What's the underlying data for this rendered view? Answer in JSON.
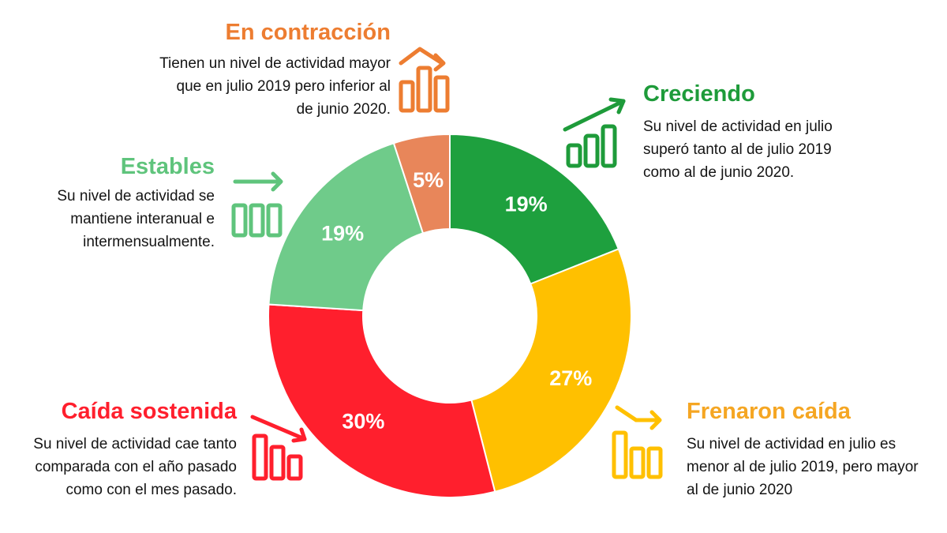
{
  "chart_data": {
    "type": "pie",
    "subtype": "donut",
    "title": "",
    "start_angle_deg": 0,
    "direction": "clockwise",
    "slices": [
      {
        "key": "creciendo",
        "label": "Creciendo",
        "value": 19,
        "display": "19%",
        "color": "#1ea03e"
      },
      {
        "key": "frenaron",
        "label": "Frenaron caída",
        "value": 27,
        "display": "27%",
        "color": "#ffc000"
      },
      {
        "key": "caida",
        "label": "Caída sostenida",
        "value": 30,
        "display": "30%",
        "color": "#ff1f2d"
      },
      {
        "key": "estables",
        "label": "Estables",
        "value": 19,
        "display": "19%",
        "color": "#6fcb8a"
      },
      {
        "key": "contraccion",
        "label": "En contracción",
        "value": 5,
        "display": "5%",
        "color": "#e8865a"
      }
    ]
  },
  "categories": {
    "contraccion": {
      "title": "En contracción",
      "color": "#ed7d31",
      "icon": "bars-arrow-up-then-down-icon",
      "lines": [
        "Tienen un nivel de actividad mayor",
        "que en julio 2019 pero inferior al",
        "de junio 2020."
      ]
    },
    "creciendo": {
      "title": "Creciendo",
      "color": "#1e9b3a",
      "icon": "bars-arrow-up-icon",
      "lines": [
        "Su nivel de actividad en julio",
        "superó tanto al de julio 2019",
        "como al de junio 2020."
      ]
    },
    "estables": {
      "title": "Estables",
      "color": "#5fc47c",
      "icon": "bars-arrow-right-icon",
      "lines": [
        "Su nivel de actividad se",
        "mantiene interanual e",
        "intermensualmente."
      ]
    },
    "caida": {
      "title": "Caída sostenida",
      "color": "#ff1f2d",
      "icon": "bars-arrow-down-icon",
      "lines": [
        "Su nivel de actividad cae tanto",
        "comparada con el año pasado",
        "como con el mes pasado."
      ]
    },
    "frenaron": {
      "title": "Frenaron caída",
      "color": "#f5a623",
      "icon": "bars-arrow-down-then-flat-icon",
      "lines": [
        "Su nivel de actividad en julio es",
        "menor al de julio 2019, pero mayor",
        "al de junio 2020"
      ]
    }
  }
}
